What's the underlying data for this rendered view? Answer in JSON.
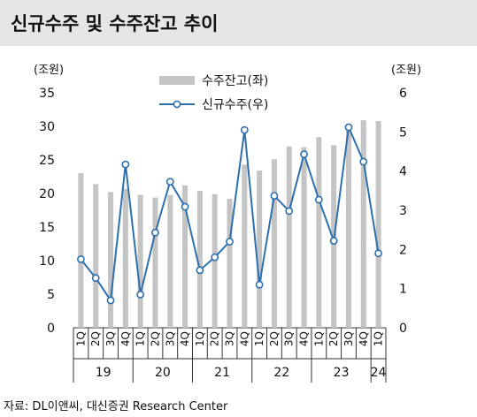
{
  "header": {
    "title": "신규수주 및 수주잔고 추이"
  },
  "footer": {
    "source": "자료: DL이앤씨, 대신증권 Research Center"
  },
  "colors": {
    "bar": "#c4c4c4",
    "line": "#2e6fae",
    "marker_fill": "#ffffff",
    "axis": "#333333"
  },
  "chart_data": {
    "type": "bar+line",
    "categories": [
      "1Q",
      "2Q",
      "3Q",
      "4Q",
      "1Q",
      "2Q",
      "3Q",
      "4Q",
      "1Q",
      "2Q",
      "3Q",
      "4Q",
      "1Q",
      "2Q",
      "3Q",
      "4Q",
      "1Q",
      "2Q",
      "3Q",
      "4Q",
      "1Q"
    ],
    "years": [
      {
        "label": "19",
        "start": 0,
        "end": 3
      },
      {
        "label": "20",
        "start": 4,
        "end": 7
      },
      {
        "label": "21",
        "start": 8,
        "end": 11
      },
      {
        "label": "22",
        "start": 12,
        "end": 15
      },
      {
        "label": "23",
        "start": 16,
        "end": 19
      },
      {
        "label": "24",
        "start": 20,
        "end": 20
      }
    ],
    "left_axis": {
      "unit": "(조원)",
      "ylim": [
        0,
        35
      ],
      "ticks": [
        0,
        5,
        10,
        15,
        20,
        25,
        30,
        35
      ]
    },
    "right_axis": {
      "unit": "(조원)",
      "ylim": [
        0,
        6
      ],
      "ticks": [
        0,
        1,
        2,
        3,
        4,
        5,
        6
      ]
    },
    "series": [
      {
        "name": "수주잔고(좌)",
        "type": "bar",
        "axis": "left",
        "values": [
          23.0,
          21.4,
          20.2,
          20.7,
          19.8,
          19.4,
          19.8,
          21.2,
          20.4,
          19.9,
          19.2,
          24.3,
          23.4,
          25.1,
          27.0,
          26.9,
          28.4,
          27.2,
          29.9,
          30.9,
          30.8
        ]
      },
      {
        "name": "신규수주(우)",
        "type": "line",
        "axis": "right",
        "values": [
          1.75,
          1.27,
          0.7,
          4.17,
          0.85,
          2.43,
          3.73,
          3.09,
          1.47,
          1.8,
          2.2,
          5.05,
          1.1,
          3.37,
          2.98,
          4.43,
          3.27,
          2.22,
          5.12,
          4.24,
          1.9
        ]
      }
    ],
    "grid": false,
    "legend_position": "top-center"
  }
}
